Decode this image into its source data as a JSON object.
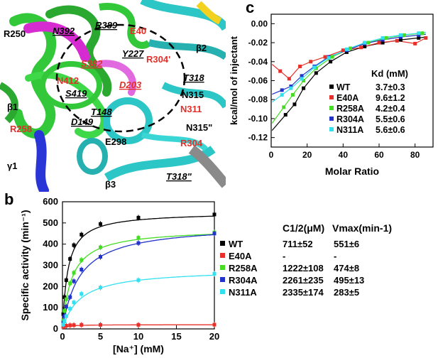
{
  "panels": {
    "a": "a",
    "b": "b",
    "c": "c"
  },
  "structure": {
    "labels": [
      {
        "text": "R250",
        "color": "#000000",
        "italic": false,
        "underline": false
      },
      {
        "text": "N392",
        "color": "#000000",
        "italic": true,
        "underline": true
      },
      {
        "text": "R389",
        "color": "#000000",
        "italic": true,
        "underline": true
      },
      {
        "text": "E40",
        "color": "#e0302a",
        "italic": false,
        "underline": false
      },
      {
        "text": "Y227",
        "color": "#000000",
        "italic": true,
        "underline": true
      },
      {
        "text": "R304'",
        "color": "#e0302a",
        "italic": false,
        "underline": false
      },
      {
        "text": "β2",
        "color": "#000000",
        "italic": false,
        "underline": false
      },
      {
        "text": "S382",
        "color": "#e0302a",
        "italic": true,
        "underline": true
      },
      {
        "text": "T318",
        "color": "#000000",
        "italic": true,
        "underline": true
      },
      {
        "text": "N412",
        "color": "#e0302a",
        "italic": false,
        "underline": false
      },
      {
        "text": "D203",
        "color": "#e0302a",
        "italic": true,
        "underline": true
      },
      {
        "text": "N315",
        "color": "#000000",
        "italic": false,
        "underline": false
      },
      {
        "text": "S419",
        "color": "#000000",
        "italic": true,
        "underline": true
      },
      {
        "text": "β1",
        "color": "#000000",
        "italic": false,
        "underline": false
      },
      {
        "text": "T148",
        "color": "#000000",
        "italic": true,
        "underline": true
      },
      {
        "text": "N311",
        "color": "#e0302a",
        "italic": false,
        "underline": false
      },
      {
        "text": "D149",
        "color": "#000000",
        "italic": true,
        "underline": true
      },
      {
        "text": "R258",
        "color": "#e0302a",
        "italic": false,
        "underline": false
      },
      {
        "text": "N315\"",
        "color": "#000000",
        "italic": false,
        "underline": false
      },
      {
        "text": "γ1",
        "color": "#000000",
        "italic": false,
        "underline": false
      },
      {
        "text": "E298",
        "color": "#000000",
        "italic": false,
        "underline": false
      },
      {
        "text": "R304",
        "color": "#e0302a",
        "italic": false,
        "underline": false
      },
      {
        "text": "T318\"",
        "color": "#000000",
        "italic": true,
        "underline": true
      },
      {
        "text": "β3",
        "color": "#000000",
        "italic": false,
        "underline": false
      }
    ],
    "ribbon_colors": {
      "green": "#33c83a",
      "magenta": "#d62bd0",
      "cyan": "#2cc6c6",
      "blue": "#2a35d8",
      "gray": "#8a8a8a",
      "yellow": "#f2d21e"
    }
  },
  "chart_data": [
    {
      "panel": "b",
      "type": "line",
      "xlabel": "[Na⁺] (mM)",
      "ylabel": "Specific activity (min⁻¹)",
      "xlim": [
        0,
        20
      ],
      "ylim": [
        0,
        600
      ],
      "xticks": [
        "0",
        "5",
        "10",
        "15",
        "20"
      ],
      "yticks": [
        "0",
        "100",
        "200",
        "300",
        "400",
        "500",
        "600"
      ],
      "table_headers": [
        "C1/2(μM)",
        "Vmax(min-1)"
      ],
      "series": [
        {
          "name": "WT",
          "color": "#000000",
          "c_half": "711±52",
          "vmax": "551±6",
          "c_half_value": 0.711,
          "vmax_value": 551,
          "x": [
            0.1,
            0.25,
            0.5,
            1,
            1.5,
            2.5,
            5,
            10,
            20
          ],
          "y": [
            70,
            150,
            230,
            330,
            395,
            445,
            495,
            525,
            540
          ]
        },
        {
          "name": "E40A",
          "color": "#e8302a",
          "c_half": "-",
          "vmax": "-",
          "c_half_value": 0.5,
          "vmax_value": 20,
          "x": [
            0.1,
            0.25,
            0.5,
            1,
            1.5,
            2.5,
            5,
            10,
            20
          ],
          "y": [
            10,
            13,
            15,
            17,
            18,
            19,
            19,
            19,
            20
          ]
        },
        {
          "name": "R258A",
          "color": "#44dd22",
          "c_half": "1222±108",
          "vmax": "474±8",
          "c_half_value": 1.222,
          "vmax_value": 474,
          "x": [
            0.1,
            0.25,
            0.5,
            1,
            1.5,
            2.5,
            5,
            10,
            20
          ],
          "y": [
            40,
            85,
            140,
            215,
            265,
            325,
            385,
            430,
            455
          ]
        },
        {
          "name": "R304A",
          "color": "#2233cc",
          "c_half": "2261±235",
          "vmax": "495±13",
          "c_half_value": 2.261,
          "vmax_value": 495,
          "x": [
            0.1,
            0.25,
            0.5,
            1,
            1.5,
            2.5,
            5,
            10,
            20
          ],
          "y": [
            30,
            60,
            105,
            150,
            225,
            280,
            340,
            405,
            450
          ]
        },
        {
          "name": "N311A",
          "color": "#33e0f0",
          "c_half": "2335±174",
          "vmax": "283±5",
          "c_half_value": 2.335,
          "vmax_value": 283,
          "x": [
            0.1,
            0.25,
            0.5,
            1,
            1.5,
            2.5,
            5,
            10,
            20
          ],
          "y": [
            20,
            35,
            60,
            95,
            125,
            165,
            195,
            230,
            260
          ]
        }
      ]
    },
    {
      "panel": "c",
      "type": "scatter",
      "xlabel": "Molar Ratio",
      "ylabel": "kcal/mol of injectant",
      "xlim": [
        0,
        90
      ],
      "ylim": [
        -0.13,
        0.01
      ],
      "xticks": [
        "0",
        "20",
        "40",
        "60",
        "80"
      ],
      "yticks": [
        "0.00",
        "-0.02",
        "-0.04",
        "-0.06",
        "-0.08",
        "-0.10",
        "-0.12"
      ],
      "legend_header": "Kd (mM)",
      "series": [
        {
          "name": "WT",
          "color": "#000000",
          "kd": "3.7±0.3",
          "x": [
            8,
            13,
            18,
            25,
            33,
            42,
            52,
            62,
            72,
            82
          ],
          "y": [
            -0.096,
            -0.085,
            -0.068,
            -0.052,
            -0.04,
            -0.03,
            -0.024,
            -0.02,
            -0.017,
            -0.015
          ]
        },
        {
          "name": "E40A",
          "color": "#e8302a",
          "kd": "9.6±1.2",
          "x": [
            5,
            10,
            16,
            22,
            30,
            40,
            50,
            60,
            70,
            80,
            86
          ],
          "y": [
            -0.05,
            -0.058,
            -0.045,
            -0.04,
            -0.035,
            -0.028,
            -0.025,
            -0.02,
            -0.018,
            -0.021,
            -0.015
          ]
        },
        {
          "name": "R258A",
          "color": "#44dd22",
          "kd": "4.2±0.4",
          "x": [
            7,
            12,
            18,
            25,
            34,
            44,
            54,
            64,
            74,
            84
          ],
          "y": [
            -0.088,
            -0.075,
            -0.06,
            -0.047,
            -0.035,
            -0.026,
            -0.02,
            -0.015,
            -0.012,
            -0.01
          ]
        },
        {
          "name": "R304A",
          "color": "#2233cc",
          "kd": "5.5±0.6",
          "x": [
            6,
            11,
            17,
            24,
            32,
            42,
            52,
            62,
            72,
            82
          ],
          "y": [
            -0.07,
            -0.066,
            -0.055,
            -0.045,
            -0.035,
            -0.028,
            -0.021,
            -0.017,
            -0.014,
            -0.012
          ]
        },
        {
          "name": "N311A",
          "color": "#33e0f0",
          "kd": "5.6±0.6",
          "x": [
            6,
            11,
            17,
            24,
            32,
            42,
            52,
            62,
            72,
            82
          ],
          "y": [
            -0.075,
            -0.068,
            -0.058,
            -0.046,
            -0.036,
            -0.027,
            -0.02,
            -0.015,
            -0.012,
            -0.01
          ]
        }
      ]
    }
  ]
}
